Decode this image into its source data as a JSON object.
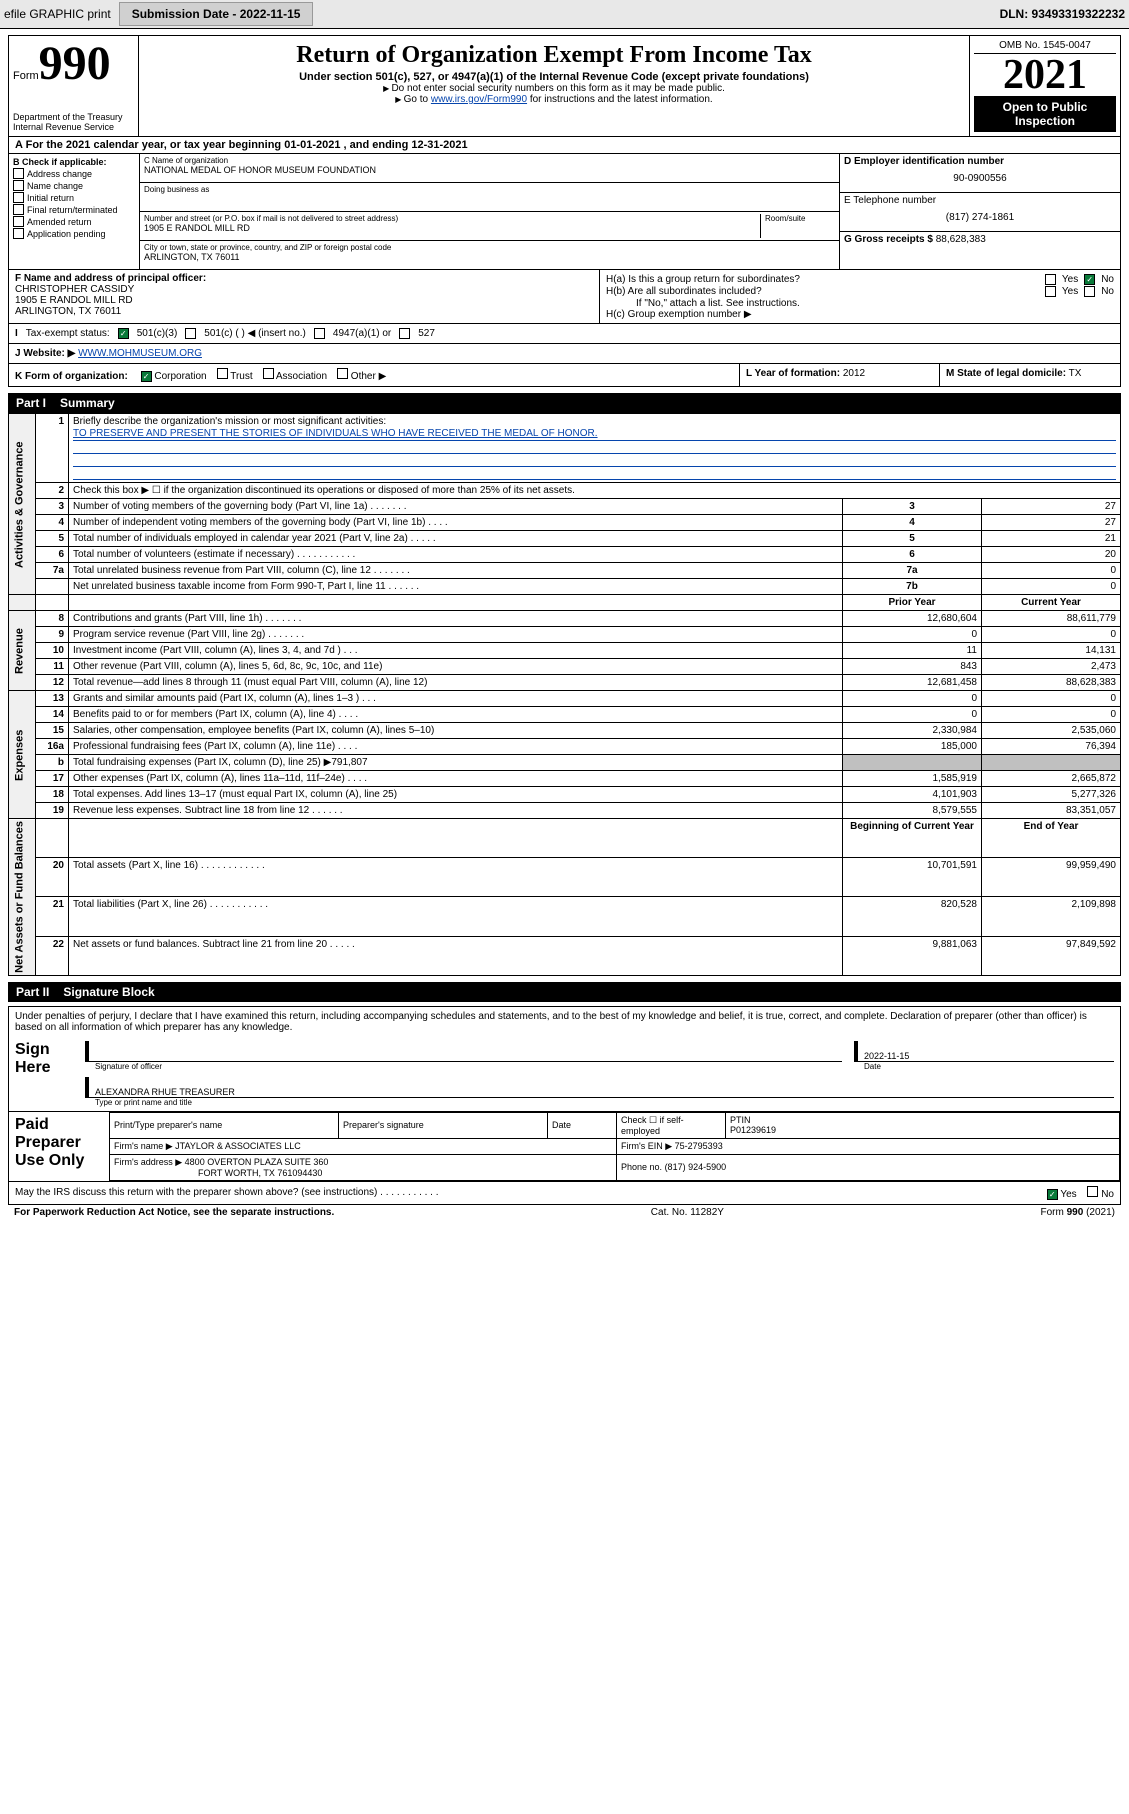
{
  "header": {
    "efile": "efile GRAPHIC print",
    "submission_label": "Submission Date - 2022-11-15",
    "dln": "DLN: 93493319322232"
  },
  "form": {
    "form_label": "Form",
    "form_no": "990",
    "dept": "Department of the Treasury",
    "irs": "Internal Revenue Service",
    "title": "Return of Organization Exempt From Income Tax",
    "subtitle": "Under section 501(c), 527, or 4947(a)(1) of the Internal Revenue Code (except private foundations)",
    "note1": "Do not enter social security numbers on this form as it may be made public.",
    "note2_pre": "Go to ",
    "note2_link": "www.irs.gov/Form990",
    "note2_post": " for instructions and the latest information.",
    "omb": "OMB No. 1545-0047",
    "year": "2021",
    "inspect": "Open to Public Inspection"
  },
  "line_a": "For the 2021 calendar year, or tax year beginning 01-01-2021   , and ending 12-31-2021",
  "col_b": {
    "header": "B Check if applicable:",
    "items": [
      "Address change",
      "Name change",
      "Initial return",
      "Final return/terminated",
      "Amended return",
      "Application pending"
    ]
  },
  "col_c": {
    "name_label": "C Name of organization",
    "name": "NATIONAL MEDAL OF HONOR MUSEUM FOUNDATION",
    "dba_label": "Doing business as",
    "dba": "",
    "street_label": "Number and street (or P.O. box if mail is not delivered to street address)",
    "room_label": "Room/suite",
    "street": "1905 E RANDOL MILL RD",
    "city_label": "City or town, state or province, country, and ZIP or foreign postal code",
    "city": "ARLINGTON, TX  76011"
  },
  "col_d": {
    "ein_label": "D Employer identification number",
    "ein": "90-0900556",
    "phone_label": "E Telephone number",
    "phone": "(817) 274-1861",
    "gross_label": "G Gross receipts $",
    "gross": "88,628,383"
  },
  "section_f": {
    "label": "F Name and address of principal officer:",
    "name": "CHRISTOPHER CASSIDY",
    "addr1": "1905 E RANDOL MILL RD",
    "addr2": "ARLINGTON, TX  76011"
  },
  "section_h": {
    "ha": "H(a)  Is this a group return for subordinates?",
    "hb": "H(b)  Are all subordinates included?",
    "hb_note": "If \"No,\" attach a list. See instructions.",
    "hc": "H(c)  Group exemption number ▶",
    "yes": "Yes",
    "no": "No"
  },
  "row_tax": {
    "label": "Tax-exempt status:",
    "opt1": "501(c)(3)",
    "opt2": "501(c) (   ) ◀ (insert no.)",
    "opt3": "4947(a)(1) or",
    "opt4": "527"
  },
  "row_j": {
    "label": "Website: ▶",
    "url": "WWW.MOHMUSEUM.ORG"
  },
  "row_k": {
    "label": "K Form of organization:",
    "opts": [
      "Corporation",
      "Trust",
      "Association",
      "Other ▶"
    ],
    "checked": 0
  },
  "row_l": {
    "label": "L Year of formation:",
    "val": "2012"
  },
  "row_m": {
    "label": "M State of legal domicile:",
    "val": "TX"
  },
  "part1": {
    "header": "Part I",
    "title": "Summary"
  },
  "summary": {
    "line1_label": "Briefly describe the organization's mission or most significant activities:",
    "line1_text": "TO PRESERVE AND PRESENT THE STORIES OF INDIVIDUALS WHO HAVE RECEIVED THE MEDAL OF HONOR.",
    "line2": "Check this box ▶ ☐  if the organization discontinued its operations or disposed of more than 25% of its net assets.",
    "rows_gov": [
      {
        "n": "3",
        "label": "Number of voting members of the governing body (Part VI, line 1a)   .    .    .    .    .    .    .",
        "box": "3",
        "val": "27"
      },
      {
        "n": "4",
        "label": "Number of independent voting members of the governing body (Part VI, line 1b)    .    .    .    .",
        "box": "4",
        "val": "27"
      },
      {
        "n": "5",
        "label": "Total number of individuals employed in calendar year 2021 (Part V, line 2a)    .    .    .    .    .",
        "box": "5",
        "val": "21"
      },
      {
        "n": "6",
        "label": "Total number of volunteers (estimate if necessary)    .    .    .    .    .    .    .    .    .    .    .",
        "box": "6",
        "val": "20"
      },
      {
        "n": "7a",
        "label": "Total unrelated business revenue from Part VIII, column (C), line 12   .    .    .    .    .    .    .",
        "box": "7a",
        "val": "0"
      },
      {
        "n": "",
        "label": "Net unrelated business taxable income from Form 990-T, Part I, line 11    .    .    .    .    .    .",
        "box": "7b",
        "val": "0"
      }
    ],
    "prior_hdr": "Prior Year",
    "curr_hdr": "Current Year",
    "rows_rev": [
      {
        "n": "8",
        "label": "Contributions and grants (Part VIII, line 1h)    .    .    .    .    .    .    .",
        "prior": "12,680,604",
        "curr": "88,611,779"
      },
      {
        "n": "9",
        "label": "Program service revenue (Part VIII, line 2g)    .    .    .    .    .    .    .",
        "prior": "0",
        "curr": "0"
      },
      {
        "n": "10",
        "label": "Investment income (Part VIII, column (A), lines 3, 4, and 7d )    .    .    .",
        "prior": "11",
        "curr": "14,131"
      },
      {
        "n": "11",
        "label": "Other revenue (Part VIII, column (A), lines 5, 6d, 8c, 9c, 10c, and 11e)",
        "prior": "843",
        "curr": "2,473"
      },
      {
        "n": "12",
        "label": "Total revenue—add lines 8 through 11 (must equal Part VIII, column (A), line 12)",
        "prior": "12,681,458",
        "curr": "88,628,383"
      }
    ],
    "rows_exp": [
      {
        "n": "13",
        "label": "Grants and similar amounts paid (Part IX, column (A), lines 1–3 )   .    .    .",
        "prior": "0",
        "curr": "0"
      },
      {
        "n": "14",
        "label": "Benefits paid to or for members (Part IX, column (A), line 4)   .    .    .    .",
        "prior": "0",
        "curr": "0"
      },
      {
        "n": "15",
        "label": "Salaries, other compensation, employee benefits (Part IX, column (A), lines 5–10)",
        "prior": "2,330,984",
        "curr": "2,535,060"
      },
      {
        "n": "16a",
        "label": "Professional fundraising fees (Part IX, column (A), line 11e)   .    .    .    .",
        "prior": "185,000",
        "curr": "76,394"
      },
      {
        "n": "b",
        "label": "Total fundraising expenses (Part IX, column (D), line 25) ▶791,807",
        "prior": "SHADE",
        "curr": "SHADE"
      },
      {
        "n": "17",
        "label": "Other expenses (Part IX, column (A), lines 11a–11d, 11f–24e)   .    .    .    .",
        "prior": "1,585,919",
        "curr": "2,665,872"
      },
      {
        "n": "18",
        "label": "Total expenses. Add lines 13–17 (must equal Part IX, column (A), line 25)",
        "prior": "4,101,903",
        "curr": "5,277,326"
      },
      {
        "n": "19",
        "label": "Revenue less expenses. Subtract line 18 from line 12   .    .    .    .    .    .",
        "prior": "8,579,555",
        "curr": "83,351,057"
      }
    ],
    "boy_hdr": "Beginning of Current Year",
    "eoy_hdr": "End of Year",
    "rows_net": [
      {
        "n": "20",
        "label": "Total assets (Part X, line 16)   .    .    .    .    .    .    .    .    .    .    .    .",
        "prior": "10,701,591",
        "curr": "99,959,490"
      },
      {
        "n": "21",
        "label": "Total liabilities (Part X, line 26)   .    .    .    .    .    .    .    .    .    .    .",
        "prior": "820,528",
        "curr": "2,109,898"
      },
      {
        "n": "22",
        "label": "Net assets or fund balances. Subtract line 21 from line 20   .    .    .    .    .",
        "prior": "9,881,063",
        "curr": "97,849,592"
      }
    ],
    "vlabels": {
      "gov": "Activities & Governance",
      "rev": "Revenue",
      "exp": "Expenses",
      "net": "Net Assets or Fund Balances"
    }
  },
  "part2": {
    "header": "Part II",
    "title": "Signature Block"
  },
  "penalty": "Under penalties of perjury, I declare that I have examined this return, including accompanying schedules and statements, and to the best of my knowledge and belief, it is true, correct, and complete. Declaration of preparer (other than officer) is based on all information of which preparer has any knowledge.",
  "sign": {
    "here": "Sign Here",
    "sig_label": "Signature of officer",
    "date_label": "Date",
    "date": "2022-11-15",
    "name": "ALEXANDRA RHUE TREASURER",
    "name_label": "Type or print name and title"
  },
  "prep": {
    "label": "Paid Preparer Use Only",
    "col1": "Print/Type preparer's name",
    "col2": "Preparer's signature",
    "col3": "Date",
    "col4_a": "Check ☐ if self-employed",
    "col5_label": "PTIN",
    "col5": "P01239619",
    "firm_name_label": "Firm's name    ▶",
    "firm_name": "JTAYLOR & ASSOCIATES LLC",
    "firm_ein_label": "Firm's EIN ▶",
    "firm_ein": "75-2795393",
    "firm_addr_label": "Firm's address ▶",
    "firm_addr1": "4800 OVERTON PLAZA SUITE 360",
    "firm_addr2": "FORT WORTH, TX  761094430",
    "phone_label": "Phone no.",
    "phone": "(817) 924-5900"
  },
  "footer": {
    "discuss": "May the IRS discuss this return with the preparer shown above? (see instructions)    .    .    .    .    .    .    .    .    .    .    .",
    "yes": "Yes",
    "no": "No",
    "paperwork": "For Paperwork Reduction Act Notice, see the separate instructions.",
    "cat": "Cat. No. 11282Y",
    "formno": "Form 990 (2021)"
  }
}
